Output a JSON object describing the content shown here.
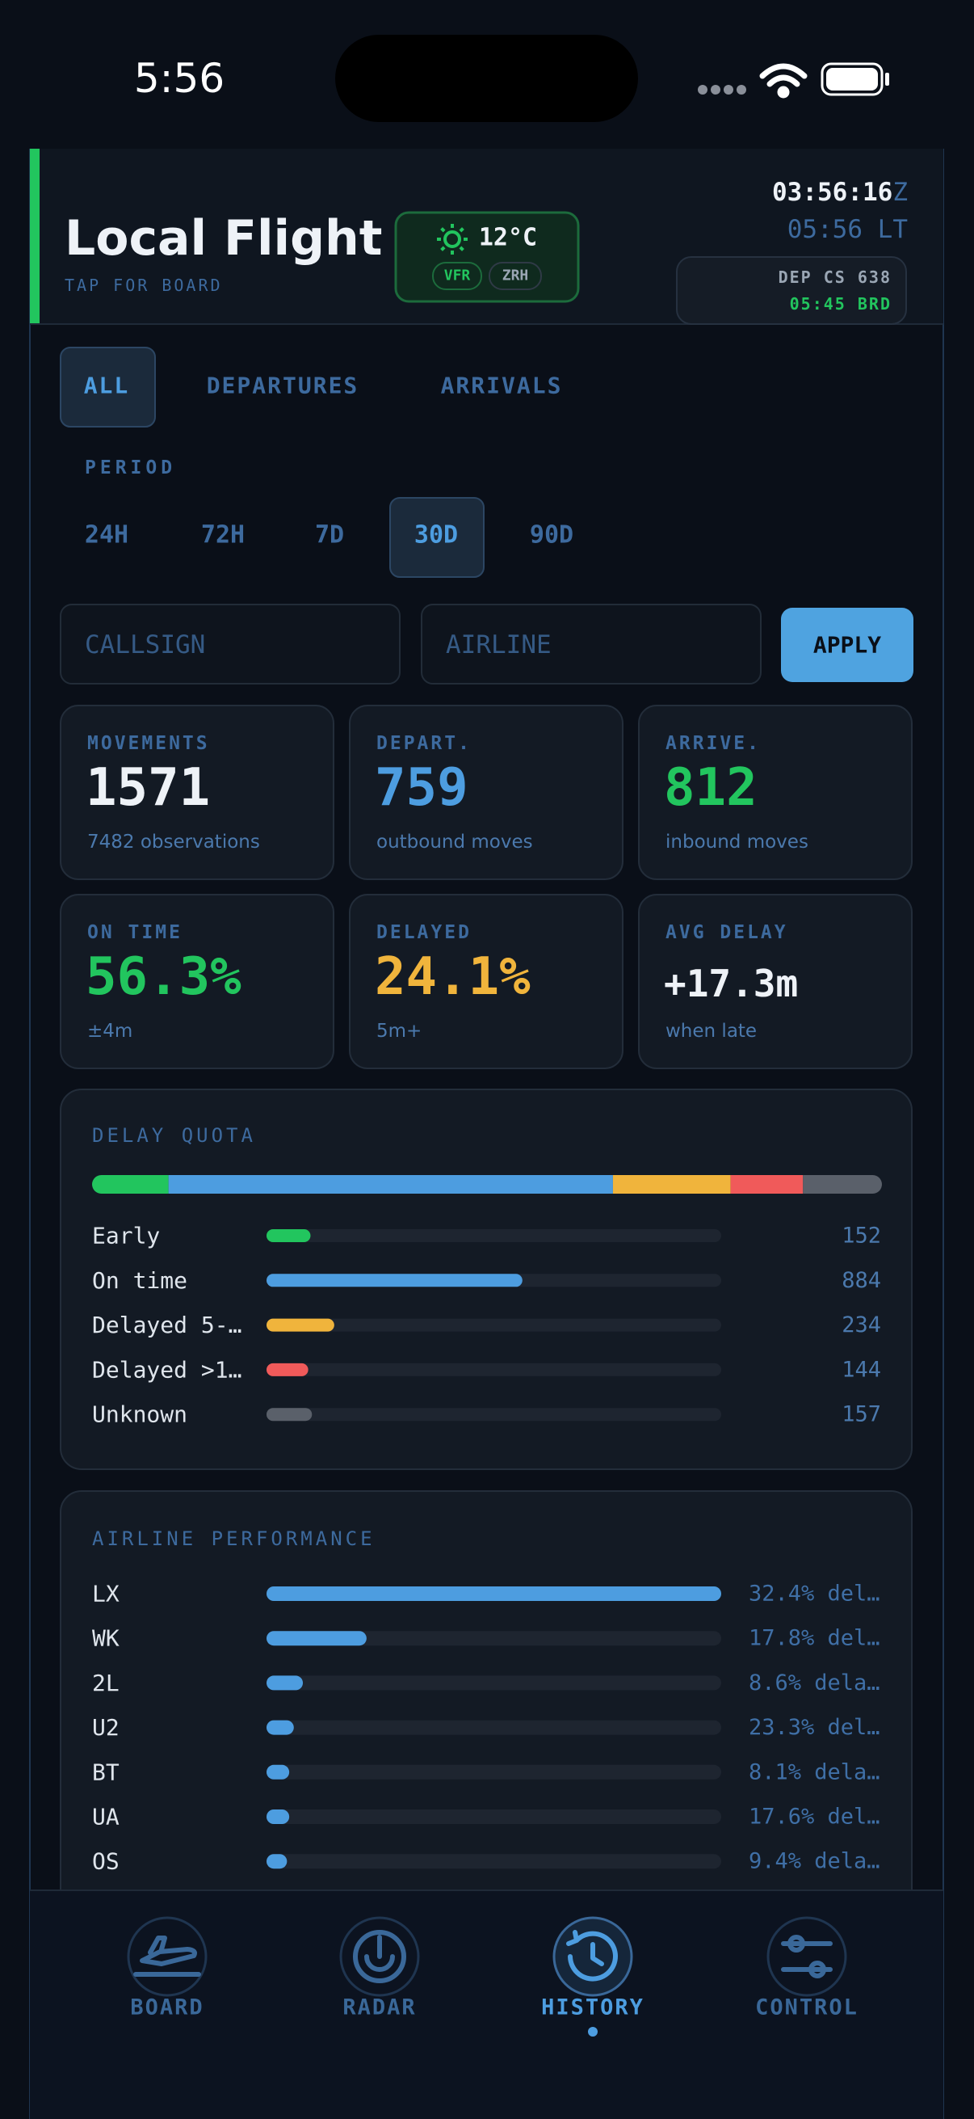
{
  "status_bar": {
    "time": "5:56"
  },
  "header": {
    "title": "Local Flight",
    "subtitle": "TAP FOR BOARD",
    "weather": {
      "temp": "12°C",
      "flight_rules": "VFR",
      "station": "ZRH"
    },
    "clock": {
      "utc": "03:56:16",
      "utc_suffix": "Z",
      "local": "05:56 LT"
    },
    "next": {
      "flight": "DEP CS 638",
      "status": "05:45 BRD"
    }
  },
  "tabs": {
    "items": [
      "ALL",
      "DEPARTURES",
      "ARRIVALS"
    ],
    "selected": 0
  },
  "period": {
    "label": "PERIOD",
    "items": [
      "24H",
      "72H",
      "7D",
      "30D",
      "90D"
    ],
    "selected": 3
  },
  "filters": {
    "callsign_placeholder": "CALLSIGN",
    "airline_placeholder": "AIRLINE",
    "apply": "APPLY"
  },
  "stats": [
    {
      "label": "MOVEMENTS",
      "value": "1571",
      "note": "7482 observations",
      "color": "#eef2f7"
    },
    {
      "label": "DEPART.",
      "value": "759",
      "note": "outbound moves",
      "color": "#4d9de0"
    },
    {
      "label": "ARRIVE.",
      "value": "812",
      "note": "inbound moves",
      "color": "#22c55e"
    },
    {
      "label": "ON TIME",
      "value": "56.3%",
      "note": "±4m",
      "color": "#22c55e"
    },
    {
      "label": "DELAYED",
      "value": "24.1%",
      "note": "5m+",
      "color": "#f0b43c"
    },
    {
      "label": "AVG DELAY",
      "value": "+17.3m",
      "note": "when late",
      "color": "#eef2f7"
    }
  ],
  "delay_quota": {
    "title": "DELAY QUOTA",
    "rows": [
      {
        "label": "Early",
        "value": 152,
        "color": "#22c55e"
      },
      {
        "label": "On time",
        "value": 884,
        "color": "#4d9de0"
      },
      {
        "label": "Delayed 5-…",
        "value": 234,
        "color": "#f0b43c"
      },
      {
        "label": "Delayed >1…",
        "value": 144,
        "color": "#f05a5a"
      },
      {
        "label": "Unknown",
        "value": 157,
        "color": "#5a606a"
      }
    ]
  },
  "airline_performance": {
    "title": "AIRLINE PERFORMANCE",
    "rows": [
      {
        "code": "LX",
        "bar": 1.0,
        "text": "32.4% del…"
      },
      {
        "code": "WK",
        "bar": 0.22,
        "text": "17.8% del…"
      },
      {
        "code": "2L",
        "bar": 0.08,
        "text": "8.6% dela…"
      },
      {
        "code": "U2",
        "bar": 0.06,
        "text": "23.3% del…"
      },
      {
        "code": "BT",
        "bar": 0.05,
        "text": "8.1% dela…"
      },
      {
        "code": "UA",
        "bar": 0.05,
        "text": "17.6% del…"
      },
      {
        "code": "OS",
        "bar": 0.045,
        "text": "9.4% dela…"
      }
    ]
  },
  "nav": {
    "items": [
      "BOARD",
      "RADAR",
      "HISTORY",
      "CONTROL"
    ],
    "selected": 2
  }
}
